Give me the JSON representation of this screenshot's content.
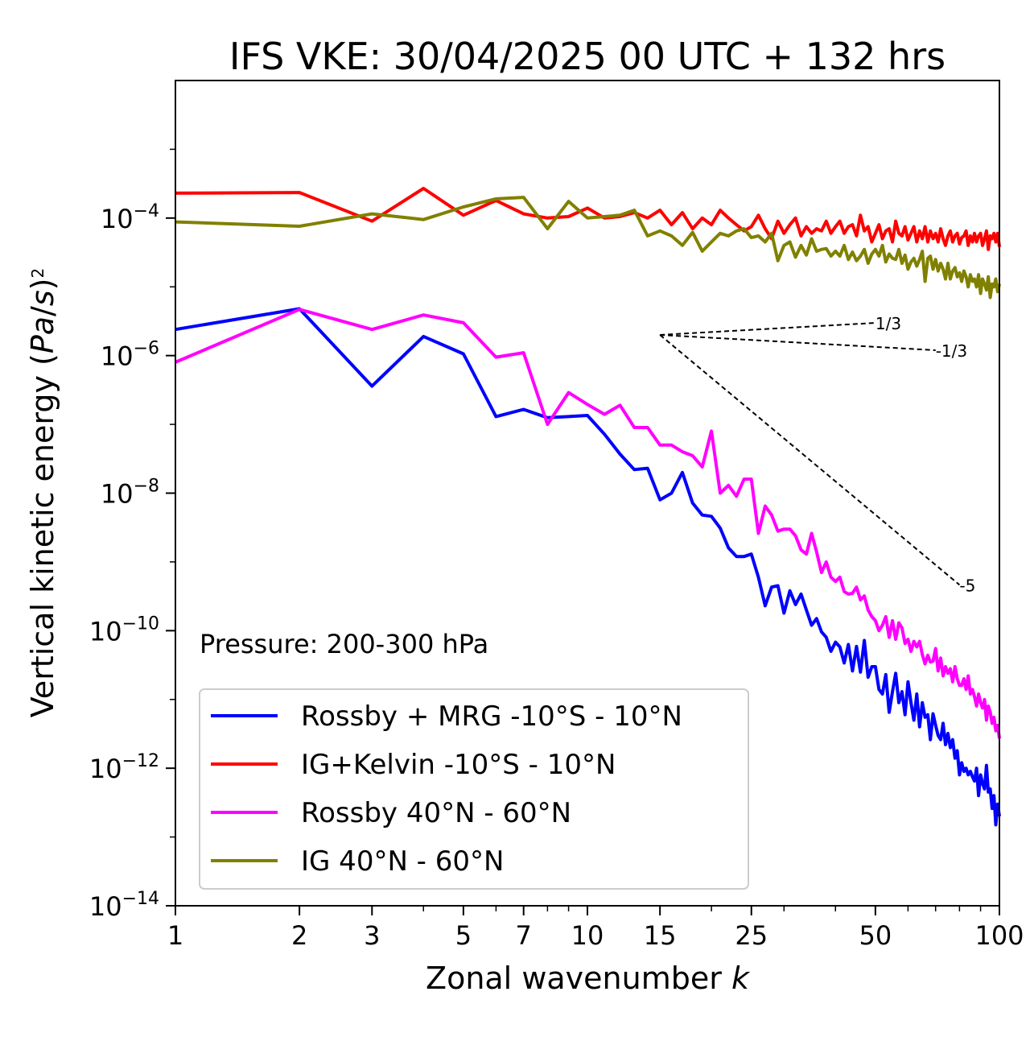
{
  "chart_data": {
    "type": "line",
    "title": "IFS VKE: 30/04/2025 00 UTC + 132 hrs",
    "xlabel": "Zonal wavenumber k",
    "ylabel": "Vertical kinetic energy (Pa/s)²",
    "xscale": "log",
    "yscale": "log",
    "xlim": [
      1,
      100
    ],
    "ylim": [
      1e-14,
      0.01
    ],
    "x_ticks": [
      {
        "value": 1,
        "label": "1"
      },
      {
        "value": 2,
        "label": "2"
      },
      {
        "value": 3,
        "label": "3"
      },
      {
        "value": 5,
        "label": "5"
      },
      {
        "value": 7,
        "label": "7"
      },
      {
        "value": 10,
        "label": "10"
      },
      {
        "value": 15,
        "label": "15"
      },
      {
        "value": 25,
        "label": "25"
      },
      {
        "value": 50,
        "label": "50"
      },
      {
        "value": 100,
        "label": "100"
      }
    ],
    "y_ticks": [
      {
        "value": 0.0001,
        "base": "10",
        "exp": "−4"
      },
      {
        "value": 1e-06,
        "base": "10",
        "exp": "−6"
      },
      {
        "value": 1e-08,
        "base": "10",
        "exp": "−8"
      },
      {
        "value": 1e-10,
        "base": "10",
        "exp": "−10"
      },
      {
        "value": 1e-12,
        "base": "10",
        "exp": "−12"
      },
      {
        "value": 1e-14,
        "base": "10",
        "exp": "−14"
      }
    ],
    "annotation": "Pressure: 200-300 hPa",
    "grid": false,
    "legend_position": "lower-left",
    "series": [
      {
        "name": "Rossby + MRG -10°S - 10°N",
        "color": "#0000ff",
        "x": [
          1,
          2,
          3,
          4,
          5,
          6,
          7,
          8,
          9,
          10,
          11,
          12,
          13,
          14,
          15,
          16,
          17,
          18,
          19,
          20,
          21,
          22,
          23,
          24,
          25,
          26,
          27,
          28,
          29,
          30,
          31,
          32,
          33,
          34,
          35,
          36,
          37,
          38,
          39,
          40,
          41,
          42,
          43,
          44,
          45,
          46,
          47,
          48,
          49,
          50,
          51,
          52,
          53,
          54,
          55,
          56,
          57,
          58,
          59,
          60,
          61,
          62,
          63,
          64,
          65,
          66,
          67,
          68,
          69,
          70,
          71,
          72,
          73,
          74,
          75,
          76,
          77,
          78,
          79,
          80,
          81,
          82,
          83,
          84,
          85,
          86,
          87,
          88,
          89,
          90,
          91,
          92,
          93,
          94,
          95,
          96,
          97,
          98,
          99,
          100
        ],
        "y": [
          2.4e-06,
          4.8e-06,
          3.6e-07,
          1.9e-06,
          1.06e-06,
          1.3e-07,
          1.65e-07,
          1.25e-07,
          1.3e-07,
          1.35e-07,
          7.2e-08,
          3.7e-08,
          2.2e-08,
          2.3e-08,
          8e-09,
          1e-08,
          2e-08,
          7.2e-09,
          4.8e-09,
          4.6e-09,
          3.1e-09,
          1.6e-09,
          1.2e-09,
          1.2e-09,
          1.3e-09,
          6e-10,
          2.3e-10,
          4.3e-10,
          4.5e-10,
          1.8e-10,
          3.8e-10,
          2.4e-10,
          3.4e-10,
          2e-10,
          1.2e-10,
          1.5e-10,
          9.6e-11,
          8e-11,
          5e-11,
          6.8e-11,
          5.8e-11,
          3.4e-11,
          6.3e-11,
          2.6e-11,
          5.9e-11,
          2.5e-11,
          7.2e-11,
          2.1e-11,
          3e-11,
          3e-11,
          1.4e-11,
          1.2e-11,
          2.3e-11,
          6.5e-12,
          1.3e-11,
          2.4e-11,
          9e-12,
          1.3e-11,
          6e-12,
          1.8e-11,
          9e-12,
          5e-12,
          1.2e-11,
          4e-12,
          9e-12,
          5.5e-12,
          6e-12,
          2.6e-12,
          6.2e-12,
          4.2e-12,
          3e-12,
          2.6e-12,
          4.5e-12,
          2.2e-12,
          3.2e-12,
          2e-12,
          2.6e-12,
          1.4e-12,
          1.8e-12,
          8e-13,
          1.2e-12,
          9e-13,
          1e-12,
          8e-13,
          9e-13,
          7.5e-13,
          6.5e-13,
          1e-12,
          4e-13,
          8e-13,
          6e-13,
          5e-13,
          1.1e-12,
          4.5e-13,
          5e-13,
          2.6e-13,
          4e-13,
          1.5e-13,
          3e-13,
          2e-13
        ]
      },
      {
        "name": "IG+Kelvin -10°S - 10°N",
        "color": "#ff0000",
        "x": [
          1,
          2,
          3,
          4,
          5,
          6,
          7,
          8,
          9,
          10,
          11,
          12,
          13,
          14,
          15,
          16,
          17,
          18,
          19,
          20,
          21,
          22,
          23,
          24,
          25,
          26,
          27,
          28,
          29,
          30,
          31,
          32,
          33,
          34,
          35,
          36,
          37,
          38,
          39,
          40,
          41,
          42,
          43,
          44,
          45,
          46,
          47,
          48,
          49,
          50,
          51,
          52,
          53,
          54,
          55,
          56,
          57,
          58,
          59,
          60,
          61,
          62,
          63,
          64,
          65,
          66,
          67,
          68,
          69,
          70,
          71,
          72,
          73,
          74,
          75,
          76,
          77,
          78,
          79,
          80,
          81,
          82,
          83,
          84,
          85,
          86,
          87,
          88,
          89,
          90,
          91,
          92,
          93,
          94,
          95,
          96,
          97,
          98,
          99,
          100
        ],
        "y": [
          0.00023,
          0.000235,
          9e-05,
          0.00027,
          0.00011,
          0.00018,
          0.000115,
          0.0001,
          0.000105,
          0.00014,
          0.0001,
          0.000105,
          0.00012,
          0.0001,
          0.00013,
          8e-05,
          0.00012,
          7e-05,
          0.0001,
          8e-05,
          0.00013,
          0.0001,
          8e-05,
          6.5e-05,
          7.5e-05,
          0.00011,
          7e-05,
          5e-05,
          9e-05,
          6e-05,
          8e-05,
          0.0001,
          5.5e-05,
          7.5e-05,
          6e-05,
          7e-05,
          6.5e-05,
          9e-05,
          6e-05,
          7.5e-05,
          9e-05,
          6e-05,
          7.5e-05,
          8e-05,
          5.5e-05,
          0.00011,
          6.5e-05,
          7.5e-05,
          4.5e-05,
          6e-05,
          8e-05,
          5e-05,
          6.5e-05,
          7e-05,
          4.5e-05,
          9e-05,
          6e-05,
          5.5e-05,
          7.5e-05,
          4.8e-05,
          6e-05,
          7.5e-05,
          4.5e-05,
          6.5e-05,
          5e-05,
          7.5e-05,
          4.5e-05,
          6.5e-05,
          5e-05,
          6e-05,
          4.5e-05,
          7e-05,
          5e-05,
          4e-05,
          5.5e-05,
          6.5e-05,
          4.5e-05,
          5.5e-05,
          6e-05,
          4.2e-05,
          5.2e-05,
          5.5e-05,
          6.5e-05,
          4e-05,
          5.5e-05,
          4.5e-05,
          6e-05,
          4.5e-05,
          5.5e-05,
          6e-05,
          4e-05,
          5e-05,
          6.5e-05,
          3.5e-05,
          5.5e-05,
          5e-05,
          6e-05,
          4.5e-05,
          6e-05,
          3.8e-05
        ]
      },
      {
        "name": "Rossby 40°N - 60°N",
        "color": "#ff00ff",
        "x": [
          1,
          2,
          3,
          4,
          5,
          6,
          7,
          8,
          9,
          10,
          11,
          12,
          13,
          14,
          15,
          16,
          17,
          18,
          19,
          20,
          21,
          22,
          23,
          24,
          25,
          26,
          27,
          28,
          29,
          30,
          31,
          32,
          33,
          34,
          35,
          36,
          37,
          38,
          39,
          40,
          41,
          42,
          43,
          44,
          45,
          46,
          47,
          48,
          49,
          50,
          51,
          52,
          53,
          54,
          55,
          56,
          57,
          58,
          59,
          60,
          61,
          62,
          63,
          64,
          65,
          66,
          67,
          68,
          69,
          70,
          71,
          72,
          73,
          74,
          75,
          76,
          77,
          78,
          79,
          80,
          81,
          82,
          83,
          84,
          85,
          86,
          87,
          88,
          89,
          90,
          91,
          92,
          93,
          94,
          95,
          96,
          97,
          98,
          99,
          100
        ],
        "y": [
          8e-07,
          4.7e-06,
          2.4e-06,
          3.9e-06,
          3e-06,
          9.5e-07,
          1.1e-06,
          1e-07,
          2.9e-07,
          1.95e-07,
          1.4e-07,
          1.9e-07,
          9e-08,
          9e-08,
          5e-08,
          5e-08,
          4e-08,
          3.5e-08,
          2.4e-08,
          8e-08,
          1e-08,
          1.3e-08,
          9e-09,
          1.6e-08,
          1.6e-08,
          2.6e-09,
          6.5e-09,
          4.8e-09,
          2.8e-09,
          3e-09,
          3e-09,
          2.4e-09,
          1.5e-09,
          1.3e-09,
          2.6e-09,
          1.4e-09,
          7e-10,
          1e-09,
          6e-10,
          5.2e-10,
          6e-10,
          3.7e-10,
          3.4e-10,
          3.5e-10,
          4.3e-10,
          2.8e-10,
          3.2e-10,
          2e-10,
          1.6e-10,
          1.4e-10,
          1e-10,
          1.2e-10,
          1.6e-10,
          8e-11,
          1.4e-10,
          7.5e-11,
          1.3e-10,
          1.1e-10,
          6.5e-11,
          7.5e-11,
          5e-11,
          7e-11,
          5.8e-11,
          7e-11,
          4.5e-11,
          3.3e-11,
          4.4e-11,
          3.5e-11,
          3.6e-11,
          5.5e-11,
          2.6e-11,
          4e-11,
          2.2e-11,
          3e-11,
          2.4e-11,
          2.8e-11,
          1.8e-11,
          3e-11,
          2e-11,
          1.6e-11,
          1.6e-11,
          2e-11,
          1.4e-11,
          2.2e-11,
          1.2e-11,
          1.4e-11,
          1.1e-11,
          8e-12,
          1.2e-11,
          9e-12,
          7.5e-12,
          1e-11,
          5e-12,
          8e-12,
          6.5e-12,
          4.5e-12,
          5.5e-12,
          3.5e-12,
          4.2e-12,
          2.7e-12
        ]
      },
      {
        "name": "IG 40°N - 60°N",
        "color": "#808000",
        "x": [
          1,
          2,
          3,
          4,
          5,
          6,
          7,
          8,
          9,
          10,
          11,
          12,
          13,
          14,
          15,
          16,
          17,
          18,
          19,
          20,
          21,
          22,
          23,
          24,
          25,
          26,
          27,
          28,
          29,
          30,
          31,
          32,
          33,
          34,
          35,
          36,
          37,
          38,
          39,
          40,
          41,
          42,
          43,
          44,
          45,
          46,
          47,
          48,
          49,
          50,
          51,
          52,
          53,
          54,
          55,
          56,
          57,
          58,
          59,
          60,
          61,
          62,
          63,
          64,
          65,
          66,
          67,
          68,
          69,
          70,
          71,
          72,
          73,
          74,
          75,
          76,
          77,
          78,
          79,
          80,
          81,
          82,
          83,
          84,
          85,
          86,
          87,
          88,
          89,
          90,
          91,
          92,
          93,
          94,
          95,
          96,
          97,
          98,
          99,
          100
        ],
        "y": [
          8.8e-05,
          7.6e-05,
          0.000115,
          9.5e-05,
          0.000145,
          0.00019,
          0.0002,
          7e-05,
          0.000175,
          0.0001,
          0.000105,
          0.00011,
          0.00013,
          5.5e-05,
          6.5e-05,
          5.5e-05,
          4e-05,
          6.2e-05,
          3.3e-05,
          4.5e-05,
          6e-05,
          5.5e-05,
          6.5e-05,
          7e-05,
          5.2e-05,
          5.5e-05,
          4.5e-05,
          6e-05,
          2.4e-05,
          4e-05,
          4.5e-05,
          2.7e-05,
          4e-05,
          2.9e-05,
          5e-05,
          3.3e-05,
          3.5e-05,
          3.6e-05,
          2.8e-05,
          3.3e-05,
          2.8e-05,
          4e-05,
          2.5e-05,
          3.2e-05,
          2.4e-05,
          2.8e-05,
          3.5e-05,
          2.2e-05,
          3e-05,
          3.5e-05,
          2.8e-05,
          4e-05,
          2.3e-05,
          3e-05,
          2.6e-05,
          2.5e-05,
          3.5e-05,
          2.2e-05,
          2.9e-05,
          1.8e-05,
          2.3e-05,
          2.6e-05,
          2e-05,
          2.5e-05,
          3.3e-05,
          1.2e-05,
          2.6e-05,
          2.8e-05,
          1.8e-05,
          2.5e-05,
          1.7e-05,
          2.2e-05,
          1.8e-05,
          1.3e-05,
          2.2e-05,
          1.3e-05,
          1.7e-05,
          1.9e-05,
          1.4e-05,
          1.6e-05,
          1.2e-05,
          1.7e-05,
          1.4e-05,
          1e-05,
          1.5e-05,
          1.2e-05,
          1.3e-05,
          1e-05,
          1.5e-05,
          8e-06,
          1.3e-05,
          1.1e-05,
          9e-06,
          1.4e-05,
          7e-06,
          1.1e-05,
          1e-05,
          1.3e-05,
          8.5e-06,
          1.1e-05
        ]
      }
    ],
    "reference_lines": [
      {
        "label": "1/3",
        "slope": 0.3333,
        "x0": 15,
        "x1": 50,
        "y0": 2e-06
      },
      {
        "label": "-1/3",
        "slope": -0.3333,
        "x0": 15,
        "x1": 70,
        "y0": 2e-06
      },
      {
        "label": "-5",
        "slope": -5,
        "x0": 15,
        "x1": 80,
        "y0": 2e-06
      }
    ]
  }
}
